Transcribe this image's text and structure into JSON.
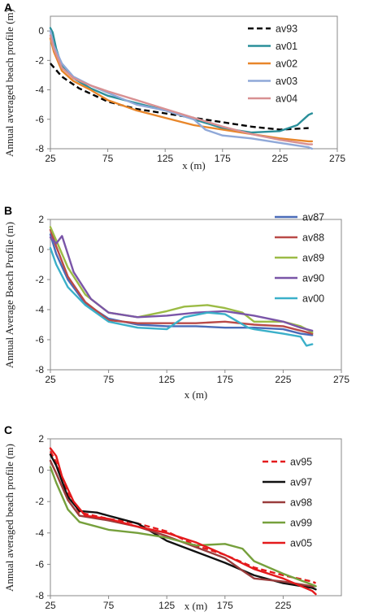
{
  "panels": [
    {
      "letter": "A",
      "ylabel": "Annual averaged beach profile (m)",
      "xlabel": "x (m)",
      "xticks": [
        "25",
        "75",
        "125",
        "175",
        "225",
        "275"
      ],
      "yticks": [
        "0",
        "-2",
        "-4",
        "-6",
        "-8"
      ]
    },
    {
      "letter": "B",
      "ylabel": "Annual Average Beach Profile (m)",
      "xlabel": "x (m)",
      "xticks": [
        "25",
        "75",
        "125",
        "175",
        "225",
        "275"
      ],
      "yticks": [
        "2",
        "0",
        "-2",
        "-4",
        "-6",
        "-8"
      ]
    },
    {
      "letter": "C",
      "ylabel": "Annual averaged beach profile (m)",
      "xlabel": "x (m)",
      "xticks": [
        "25",
        "75",
        "125",
        "175",
        "225"
      ],
      "yticks": [
        "2",
        "0",
        "-2",
        "-4",
        "-6",
        "-8"
      ]
    }
  ],
  "chart_data": [
    {
      "type": "line",
      "xlim": [
        25,
        275
      ],
      "ylim": [
        -8,
        1
      ],
      "grid": false,
      "legend": "top-right",
      "series": [
        {
          "name": "av93",
          "color": "#000000",
          "dash": true,
          "x": [
            25,
            35,
            50,
            75,
            100,
            125,
            150,
            175,
            200,
            225,
            250
          ],
          "y": [
            -2.2,
            -3.1,
            -3.9,
            -4.8,
            -5.3,
            -5.6,
            -5.9,
            -6.2,
            -6.5,
            -6.7,
            -6.6
          ]
        },
        {
          "name": "av01",
          "color": "#2a8f9a",
          "x": [
            25,
            27,
            30,
            35,
            45,
            60,
            75,
            100,
            125,
            150,
            175,
            200,
            225,
            240,
            250,
            253
          ],
          "y": [
            0.2,
            -0.1,
            -1.2,
            -2.4,
            -3.2,
            -3.9,
            -4.4,
            -4.9,
            -5.4,
            -6.0,
            -6.6,
            -6.9,
            -6.8,
            -6.4,
            -5.7,
            -5.6
          ]
        },
        {
          "name": "av02",
          "color": "#e8862a",
          "x": [
            25,
            28,
            35,
            45,
            60,
            75,
            100,
            125,
            150,
            175,
            200,
            225,
            250,
            253
          ],
          "y": [
            -0.5,
            -1.4,
            -2.7,
            -3.4,
            -4.0,
            -4.7,
            -5.4,
            -5.9,
            -6.4,
            -6.7,
            -7.0,
            -7.3,
            -7.5,
            -7.5
          ]
        },
        {
          "name": "av03",
          "color": "#8fa8d8",
          "x": [
            25,
            28,
            35,
            45,
            60,
            75,
            100,
            125,
            150,
            160,
            175,
            200,
            225,
            250,
            253
          ],
          "y": [
            0.0,
            -1.0,
            -2.2,
            -3.1,
            -3.7,
            -4.2,
            -5.0,
            -5.4,
            -6.0,
            -6.7,
            -7.1,
            -7.3,
            -7.6,
            -7.9,
            -8.0
          ]
        },
        {
          "name": "av04",
          "color": "#d89092",
          "x": [
            25,
            28,
            35,
            45,
            60,
            75,
            100,
            125,
            150,
            175,
            200,
            225,
            250,
            253
          ],
          "y": [
            -0.3,
            -1.2,
            -2.5,
            -3.2,
            -3.7,
            -4.1,
            -4.7,
            -5.3,
            -5.9,
            -6.5,
            -7.0,
            -7.4,
            -7.7,
            -7.7
          ]
        }
      ]
    },
    {
      "type": "line",
      "xlim": [
        25,
        275
      ],
      "ylim": [
        -8,
        2
      ],
      "grid": false,
      "legend": "right",
      "series": [
        {
          "name": "av87",
          "color": "#4a6bb8",
          "x": [
            25,
            30,
            40,
            55,
            75,
            100,
            125,
            150,
            175,
            200,
            225,
            240,
            250
          ],
          "y": [
            1.0,
            -0.3,
            -2.0,
            -3.6,
            -4.6,
            -5.0,
            -5.1,
            -5.1,
            -5.2,
            -5.2,
            -5.3,
            -5.6,
            -5.7
          ]
        },
        {
          "name": "av88",
          "color": "#b94a48",
          "x": [
            25,
            30,
            40,
            55,
            75,
            100,
            125,
            150,
            175,
            200,
            225,
            240,
            250
          ],
          "y": [
            1.3,
            0.2,
            -1.8,
            -3.5,
            -4.7,
            -4.9,
            -4.9,
            -4.9,
            -4.8,
            -5.0,
            -5.1,
            -5.4,
            -5.6
          ]
        },
        {
          "name": "av89",
          "color": "#9bbb45",
          "x": [
            25,
            30,
            40,
            55,
            75,
            100,
            125,
            140,
            160,
            175,
            190,
            200,
            225,
            240,
            250
          ],
          "y": [
            1.5,
            0.6,
            -1.2,
            -3.0,
            -4.2,
            -4.5,
            -4.1,
            -3.8,
            -3.7,
            -3.9,
            -4.2,
            -4.8,
            -4.8,
            -5.1,
            -5.5
          ]
        },
        {
          "name": "av90",
          "color": "#7a55a8",
          "x": [
            25,
            30,
            35,
            45,
            60,
            75,
            100,
            125,
            150,
            175,
            200,
            225,
            240,
            250
          ],
          "y": [
            0.8,
            0.4,
            0.9,
            -1.5,
            -3.3,
            -4.2,
            -4.5,
            -4.4,
            -4.2,
            -4.1,
            -4.4,
            -4.8,
            -5.2,
            -5.4
          ]
        },
        {
          "name": "av00",
          "color": "#3bb0c9",
          "x": [
            25,
            30,
            40,
            55,
            75,
            100,
            125,
            140,
            160,
            175,
            195,
            200,
            225,
            240,
            245,
            250
          ],
          "y": [
            0.1,
            -1.0,
            -2.5,
            -3.7,
            -4.8,
            -5.2,
            -5.3,
            -4.5,
            -4.2,
            -4.3,
            -5.2,
            -5.3,
            -5.6,
            -5.8,
            -6.4,
            -6.3
          ]
        }
      ]
    },
    {
      "type": "line",
      "xlim": [
        25,
        275
      ],
      "ylim": [
        -8,
        2
      ],
      "grid": false,
      "legend": "right",
      "series": [
        {
          "name": "av95",
          "color": "#e41a1c",
          "dash": true,
          "x": [
            25,
            30,
            40,
            50,
            75,
            100,
            125,
            150,
            175,
            200,
            225,
            250,
            253
          ],
          "y": [
            1.2,
            0.5,
            -1.5,
            -2.7,
            -3.1,
            -3.4,
            -3.9,
            -4.8,
            -5.4,
            -6.2,
            -6.7,
            -7.1,
            -7.2
          ]
        },
        {
          "name": "av97",
          "color": "#111111",
          "x": [
            25,
            30,
            40,
            50,
            65,
            75,
            100,
            125,
            150,
            175,
            200,
            225,
            250,
            253
          ],
          "y": [
            1.0,
            0.3,
            -1.7,
            -2.6,
            -2.7,
            -2.9,
            -3.4,
            -4.5,
            -5.2,
            -5.9,
            -6.7,
            -7.2,
            -7.5,
            -7.6
          ]
        },
        {
          "name": "av98",
          "color": "#9a3c3c",
          "x": [
            25,
            30,
            40,
            50,
            75,
            100,
            125,
            150,
            175,
            190,
            200,
            225,
            250,
            253
          ],
          "y": [
            0.6,
            -0.2,
            -1.9,
            -2.9,
            -3.2,
            -3.6,
            -4.2,
            -4.9,
            -5.6,
            -6.4,
            -6.9,
            -7.1,
            -7.4,
            -7.4
          ]
        },
        {
          "name": "av99",
          "color": "#76a03c",
          "x": [
            25,
            30,
            40,
            50,
            75,
            100,
            125,
            150,
            175,
            190,
            200,
            225,
            250,
            253
          ],
          "y": [
            0.2,
            -0.8,
            -2.5,
            -3.3,
            -3.8,
            -4.0,
            -4.3,
            -4.8,
            -4.7,
            -5.0,
            -5.8,
            -6.6,
            -7.3,
            -7.4
          ]
        },
        {
          "name": "av05",
          "color": "#e41a1c",
          "x": [
            25,
            30,
            35,
            45,
            55,
            75,
            100,
            125,
            150,
            175,
            200,
            225,
            250,
            253
          ],
          "y": [
            1.4,
            0.9,
            -0.4,
            -2.0,
            -2.9,
            -3.1,
            -3.6,
            -4.0,
            -4.6,
            -5.4,
            -6.3,
            -6.9,
            -7.7,
            -7.9
          ]
        }
      ]
    }
  ]
}
